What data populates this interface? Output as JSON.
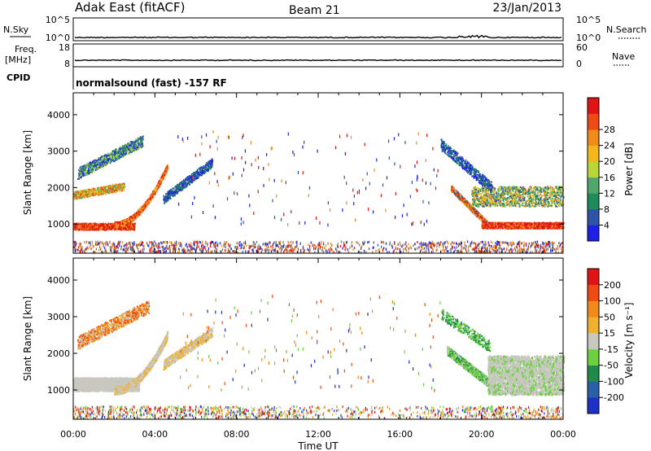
{
  "header": {
    "station": "Adak East (fitACF)",
    "beam": "Beam 21",
    "date": "23/Jan/2013"
  },
  "top_panels": {
    "nsky": {
      "label": "N.Sky",
      "tick_top": "10^5",
      "tick_bottom": "10^0",
      "right_label": "N.Search",
      "right_tick_top": "10^5",
      "right_tick_bottom": "10^0"
    },
    "freq": {
      "label_line1": "Freq.",
      "label_line2": "[MHz]",
      "tick_top": "18",
      "tick_bottom": "8",
      "right_label": "Nave",
      "right_tick_top": "60",
      "right_tick_bottom": "0"
    },
    "cpid": {
      "label": "CPID",
      "value": "normalsound (fast) -157 RF"
    }
  },
  "chart_data": [
    {
      "type": "heatmap",
      "panel": "power",
      "ylabel": "Slant Range [km]",
      "ylim": [
        200,
        4600
      ],
      "yticks": [
        "1000",
        "2000",
        "3000",
        "4000"
      ],
      "xlim_hours": [
        0,
        24
      ],
      "colorbar": {
        "label": "Power [dB]",
        "ticks": [
          "4",
          "8",
          "12",
          "16",
          "20",
          "24",
          "28"
        ],
        "colors": [
          "#1f1fe6",
          "#2e54a8",
          "#1f8a5a",
          "#4fa86a",
          "#b8d63a",
          "#f2b81a",
          "#f08a1a",
          "#ee4a14",
          "#e01414"
        ]
      }
    },
    {
      "type": "heatmap",
      "panel": "velocity",
      "ylabel": "Slant Range [km]",
      "ylim": [
        200,
        4600
      ],
      "yticks": [
        "1000",
        "2000",
        "3000",
        "4000"
      ],
      "xlim_hours": [
        0,
        24
      ],
      "xlabel": "Time UT",
      "xticks": [
        "00:00",
        "04:00",
        "08:00",
        "12:00",
        "16:00",
        "20:00",
        "00:00"
      ],
      "colorbar": {
        "label": "Velocity [m s⁻¹]",
        "ticks": [
          "200",
          "100",
          "50",
          "15",
          "-15",
          "-50",
          "-100",
          "-200"
        ],
        "colors": [
          "#1f30c8",
          "#2a5fa8",
          "#208a4a",
          "#6cd040",
          "#c8c8c0",
          "#f0b030",
          "#f08a1a",
          "#ee4a14",
          "#e01414"
        ]
      }
    }
  ]
}
